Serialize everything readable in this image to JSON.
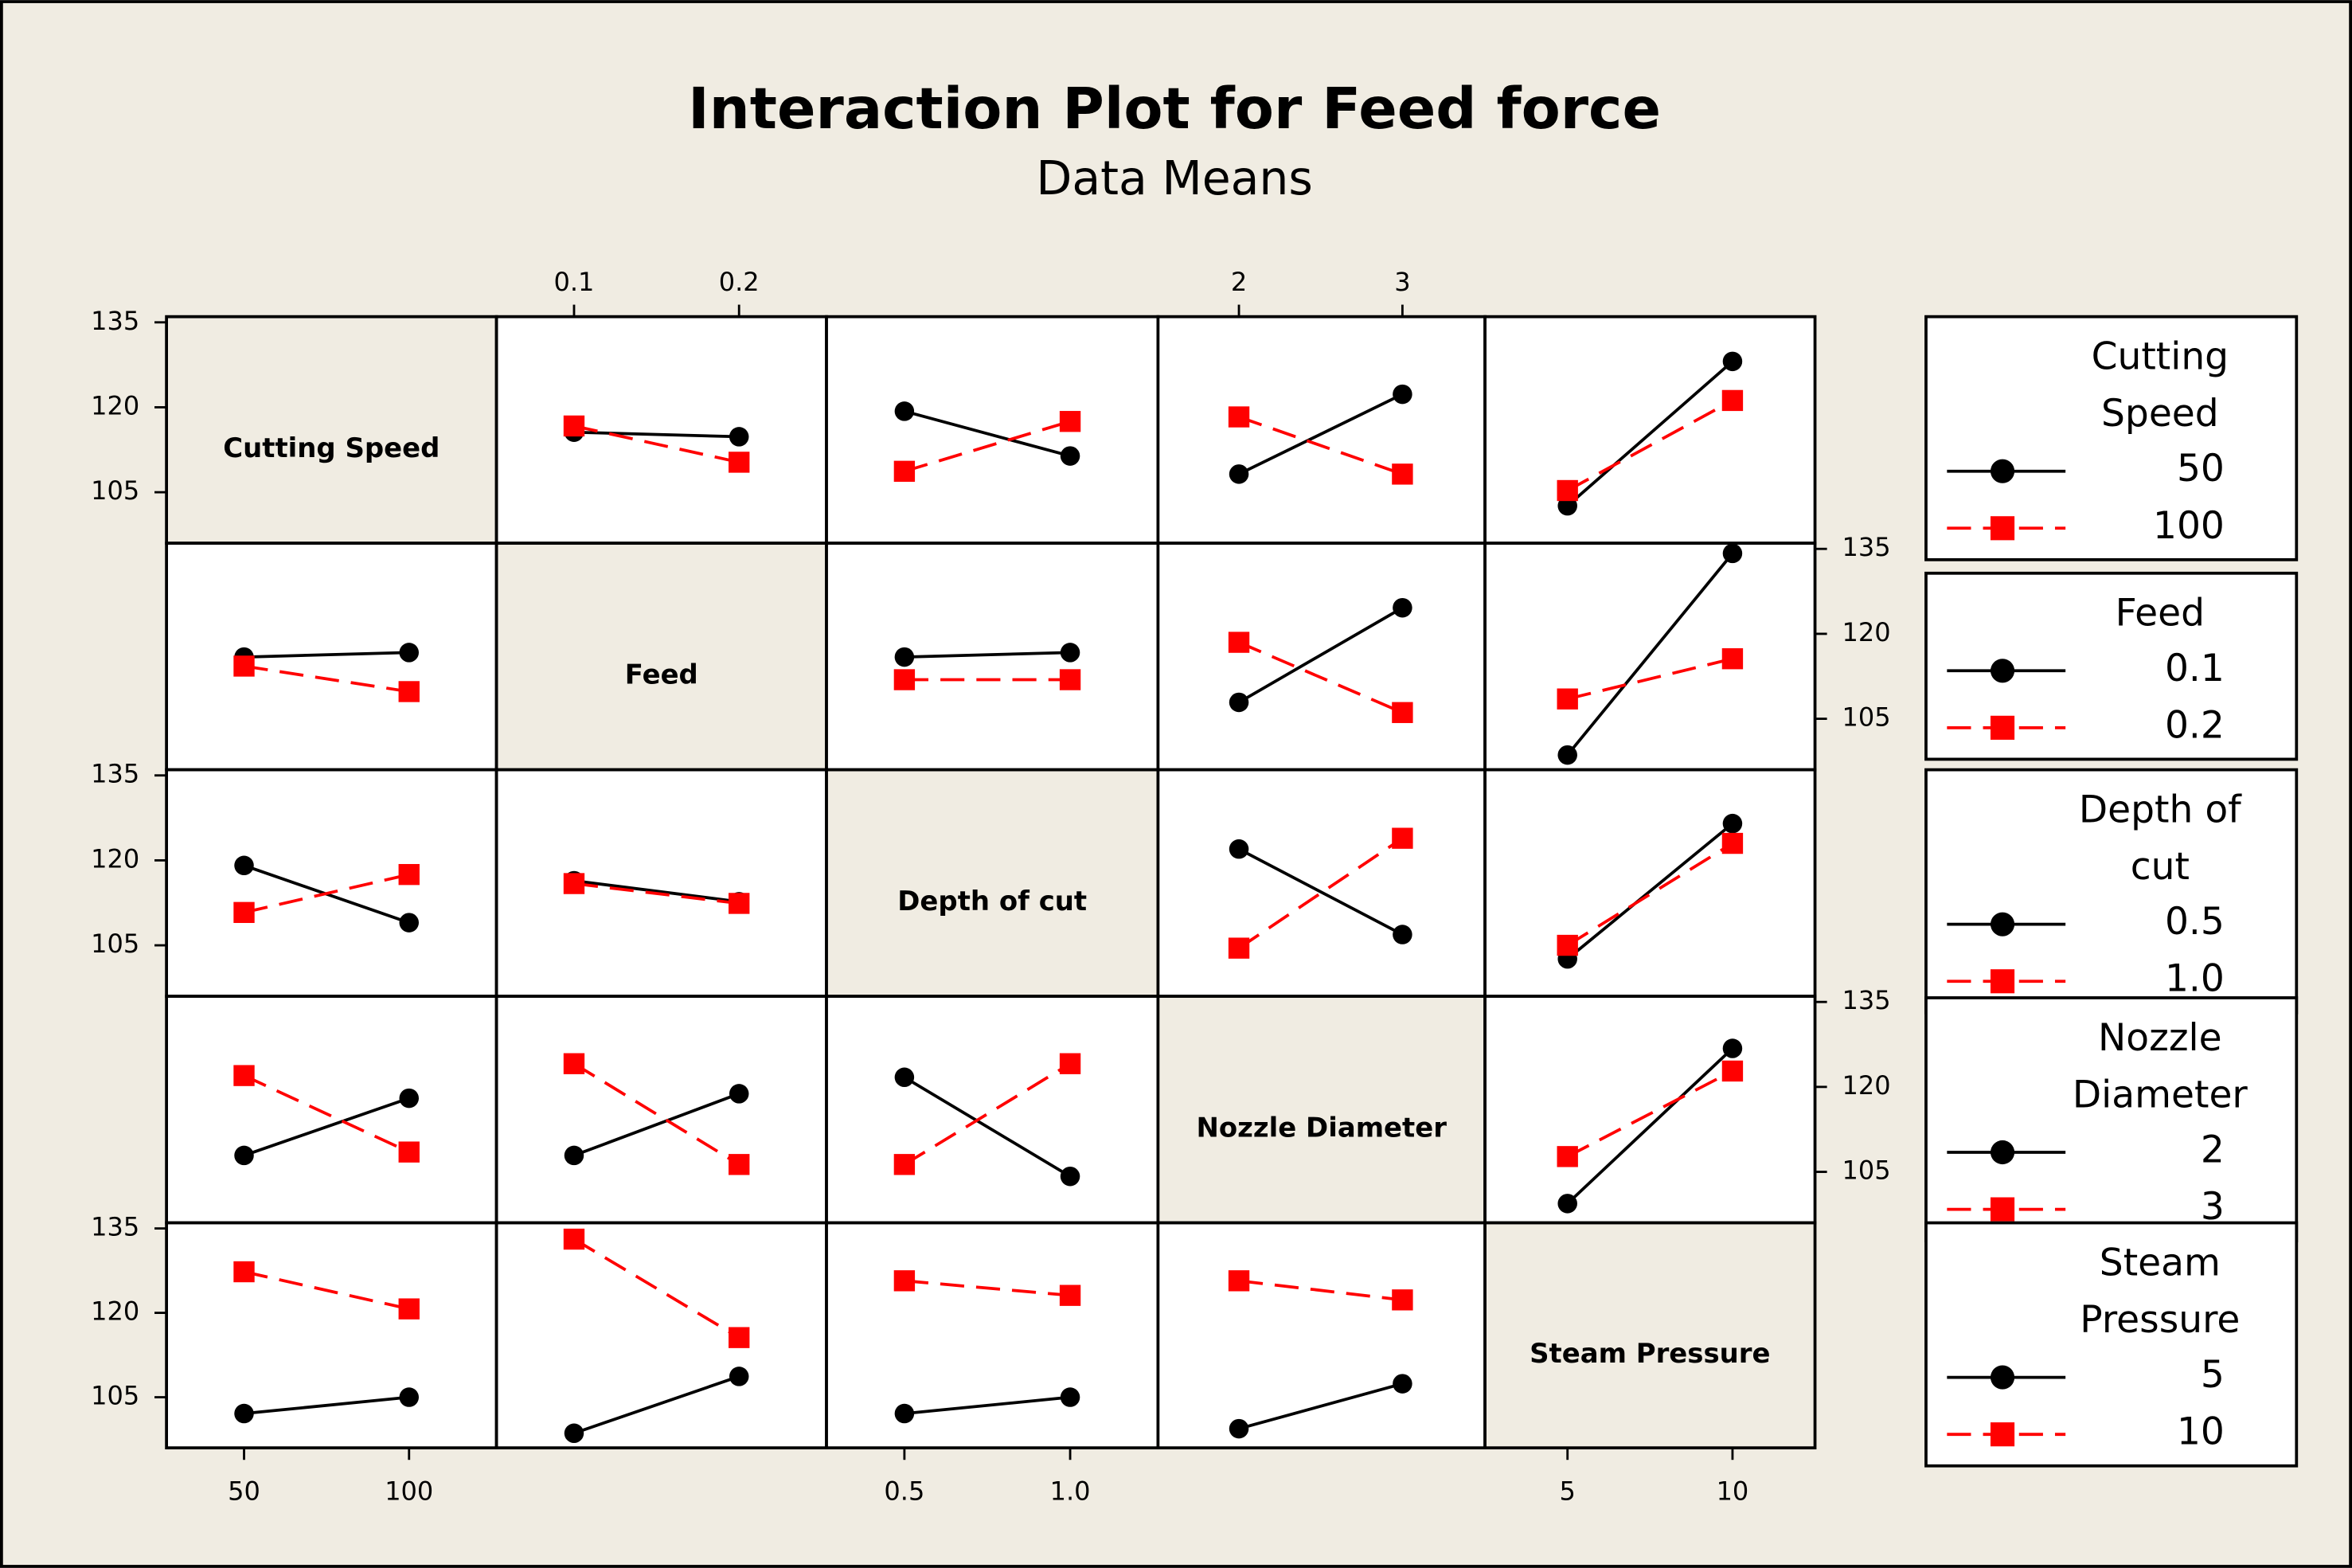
{
  "chart_data": {
    "type": "interaction_matrix",
    "title": "Interaction Plot for Feed force",
    "subtitle": "Data Means",
    "ylim": [
      96,
      136
    ],
    "yticks": [
      105,
      120,
      135
    ],
    "series_styles": [
      {
        "color": "#000000",
        "marker": "circle",
        "line": "solid"
      },
      {
        "color": "#ff0000",
        "marker": "square",
        "line": "dashed"
      }
    ],
    "factors": [
      {
        "name": "Cutting Speed",
        "levels": [
          50,
          100
        ],
        "xlim": [
          26.5,
          126.5
        ],
        "panels": [
          null,
          {
            "series": [
              {
                "values": [
                  115.6,
                  114.8
                ]
              },
              {
                "values": [
                  116.7,
                  110.3
                ]
              }
            ]
          },
          {
            "series": [
              {
                "values": [
                  119.3,
                  111.4
                ]
              },
              {
                "values": [
                  108.7,
                  117.5
                ]
              }
            ]
          },
          {
            "series": [
              {
                "values": [
                  108.2,
                  122.3
                ]
              },
              {
                "values": [
                  118.3,
                  108.2
                ]
              }
            ]
          },
          {
            "series": [
              {
                "values": [
                  102.6,
                  128.1
                ]
              },
              {
                "values": [
                  105.3,
                  121.2
                ]
              }
            ]
          }
        ]
      },
      {
        "name": "Feed",
        "levels": [
          0.1,
          0.2
        ],
        "xlim": [
          0.053,
          0.253
        ],
        "panels": [
          {
            "series": [
              {
                "values": [
                  115.9,
                  116.7
                ]
              },
              {
                "values": [
                  114.3,
                  109.8
                ]
              }
            ]
          },
          null,
          {
            "series": [
              {
                "values": [
                  115.9,
                  116.7
                ]
              },
              {
                "values": [
                  111.9,
                  111.9
                ]
              }
            ]
          },
          {
            "series": [
              {
                "values": [
                  107.9,
                  124.6
                ]
              },
              {
                "values": [
                  118.5,
                  106.1
                ]
              }
            ]
          },
          {
            "series": [
              {
                "values": [
                  98.6,
                  134.2
                ]
              },
              {
                "values": [
                  108.5,
                  115.6
                ]
              }
            ]
          }
        ]
      },
      {
        "name": "Depth of cut",
        "levels": [
          0.5,
          {
            "value": 1,
            "label": "1.0"
          }
        ],
        "xlim": [
          0.265,
          1.265
        ],
        "panels": [
          {
            "series": [
              {
                "values": [
                  119.1,
                  109.0
                ]
              },
              {
                "values": [
                  110.8,
                  117.5
                ]
              }
            ]
          },
          {
            "series": [
              {
                "values": [
                  116.4,
                  112.7
                ]
              },
              {
                "values": [
                  115.9,
                  112.4
                ]
              }
            ]
          },
          null,
          {
            "series": [
              {
                "values": [
                  122.0,
                  106.9
                ]
              },
              {
                "values": [
                  104.5,
                  123.9
                ]
              }
            ]
          },
          {
            "series": [
              {
                "values": [
                  102.6,
                  126.5
                ]
              },
              {
                "values": [
                  105.0,
                  123.0
                ]
              }
            ]
          }
        ]
      },
      {
        "name": "Nozzle Diameter",
        "levels": [
          2,
          3
        ],
        "xlim": [
          1.505,
          3.505
        ],
        "panels": [
          {
            "series": [
              {
                "values": [
                  107.9,
                  118.0
                ]
              },
              {
                "values": [
                  122.0,
                  108.5
                ]
              }
            ]
          },
          {
            "series": [
              {
                "values": [
                  107.9,
                  118.8
                ]
              },
              {
                "values": [
                  124.1,
                  106.3
                ]
              }
            ]
          },
          {
            "series": [
              {
                "values": [
                  121.7,
                  104.2
                ]
              },
              {
                "values": [
                  106.3,
                  124.1
                ]
              }
            ]
          },
          null,
          {
            "series": [
              {
                "values": [
                  99.4,
                  126.8
                ]
              },
              {
                "values": [
                  107.7,
                  122.8
                ]
              }
            ]
          }
        ]
      },
      {
        "name": "Steam Pressure",
        "levels": [
          5,
          10
        ],
        "xlim": [
          2.5,
          12.5
        ],
        "panels": [
          {
            "series": [
              {
                "values": [
                  102.1,
                  105.0
                ]
              },
              {
                "values": [
                  127.3,
                  120.7
                ]
              }
            ]
          },
          {
            "series": [
              {
                "values": [
                  98.6,
                  108.7
                ]
              },
              {
                "values": [
                  133.1,
                  115.6
                ]
              }
            ]
          },
          {
            "series": [
              {
                "values": [
                  102.1,
                  105.0
                ]
              },
              {
                "values": [
                  125.7,
                  123.1
                ]
              }
            ]
          },
          {
            "series": [
              {
                "values": [
                  99.4,
                  107.4
                ]
              },
              {
                "values": [
                  125.7,
                  122.3
                ]
              }
            ]
          },
          null
        ]
      }
    ]
  }
}
